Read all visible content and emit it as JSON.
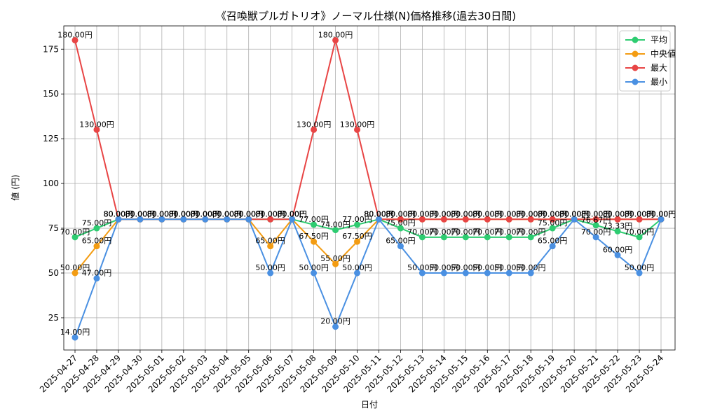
{
  "chart_data": {
    "type": "line",
    "title": "《召喚獣プルガトリオ》ノーマル仕様(N)価格推移(過去30日間)",
    "xlabel": "日付",
    "ylabel": "値 (円)",
    "ylim": [
      7,
      188
    ],
    "yticks": [
      25,
      50,
      75,
      100,
      125,
      150,
      175
    ],
    "grid": true,
    "legend_position": "top-right",
    "categories": [
      "2025-04-27",
      "2025-04-28",
      "2025-04-29",
      "2025-04-30",
      "2025-05-01",
      "2025-05-02",
      "2025-05-03",
      "2025-05-04",
      "2025-05-05",
      "2025-05-06",
      "2025-05-07",
      "2025-05-08",
      "2025-05-09",
      "2025-05-10",
      "2025-05-11",
      "2025-05-12",
      "2025-05-13",
      "2025-05-14",
      "2025-05-15",
      "2025-05-16",
      "2025-05-17",
      "2025-05-18",
      "2025-05-19",
      "2025-05-20",
      "2025-05-21",
      "2025-05-22",
      "2025-05-23",
      "2025-05-24"
    ],
    "label_suffix": "円",
    "series": [
      {
        "name": "平均",
        "color": "#2ecc71",
        "values": [
          70,
          75,
          80,
          80,
          80,
          80,
          80,
          80,
          80,
          80,
          80,
          77,
          74,
          77,
          80,
          75,
          70,
          70,
          70,
          70,
          70,
          70,
          75,
          80,
          76.67,
          73.33,
          70,
          80
        ]
      },
      {
        "name": "中央値",
        "color": "#f39c12",
        "values": [
          50,
          65,
          80,
          80,
          80,
          80,
          80,
          80,
          80,
          65,
          80,
          67.5,
          55,
          67.5,
          80,
          80,
          80,
          80,
          80,
          80,
          80,
          80,
          80,
          80,
          80,
          80,
          80,
          80
        ]
      },
      {
        "name": "最大",
        "color": "#e84545",
        "values": [
          180,
          130,
          80,
          80,
          80,
          80,
          80,
          80,
          80,
          80,
          80,
          130,
          180,
          130,
          80,
          80,
          80,
          80,
          80,
          80,
          80,
          80,
          80,
          80,
          80,
          80,
          80,
          80
        ]
      },
      {
        "name": "最小",
        "color": "#4a90e2",
        "values": [
          14,
          47,
          80,
          80,
          80,
          80,
          80,
          80,
          80,
          50,
          80,
          50,
          20,
          50,
          80,
          65,
          50,
          50,
          50,
          50,
          50,
          50,
          65,
          80,
          70,
          60,
          50,
          80
        ]
      }
    ]
  }
}
